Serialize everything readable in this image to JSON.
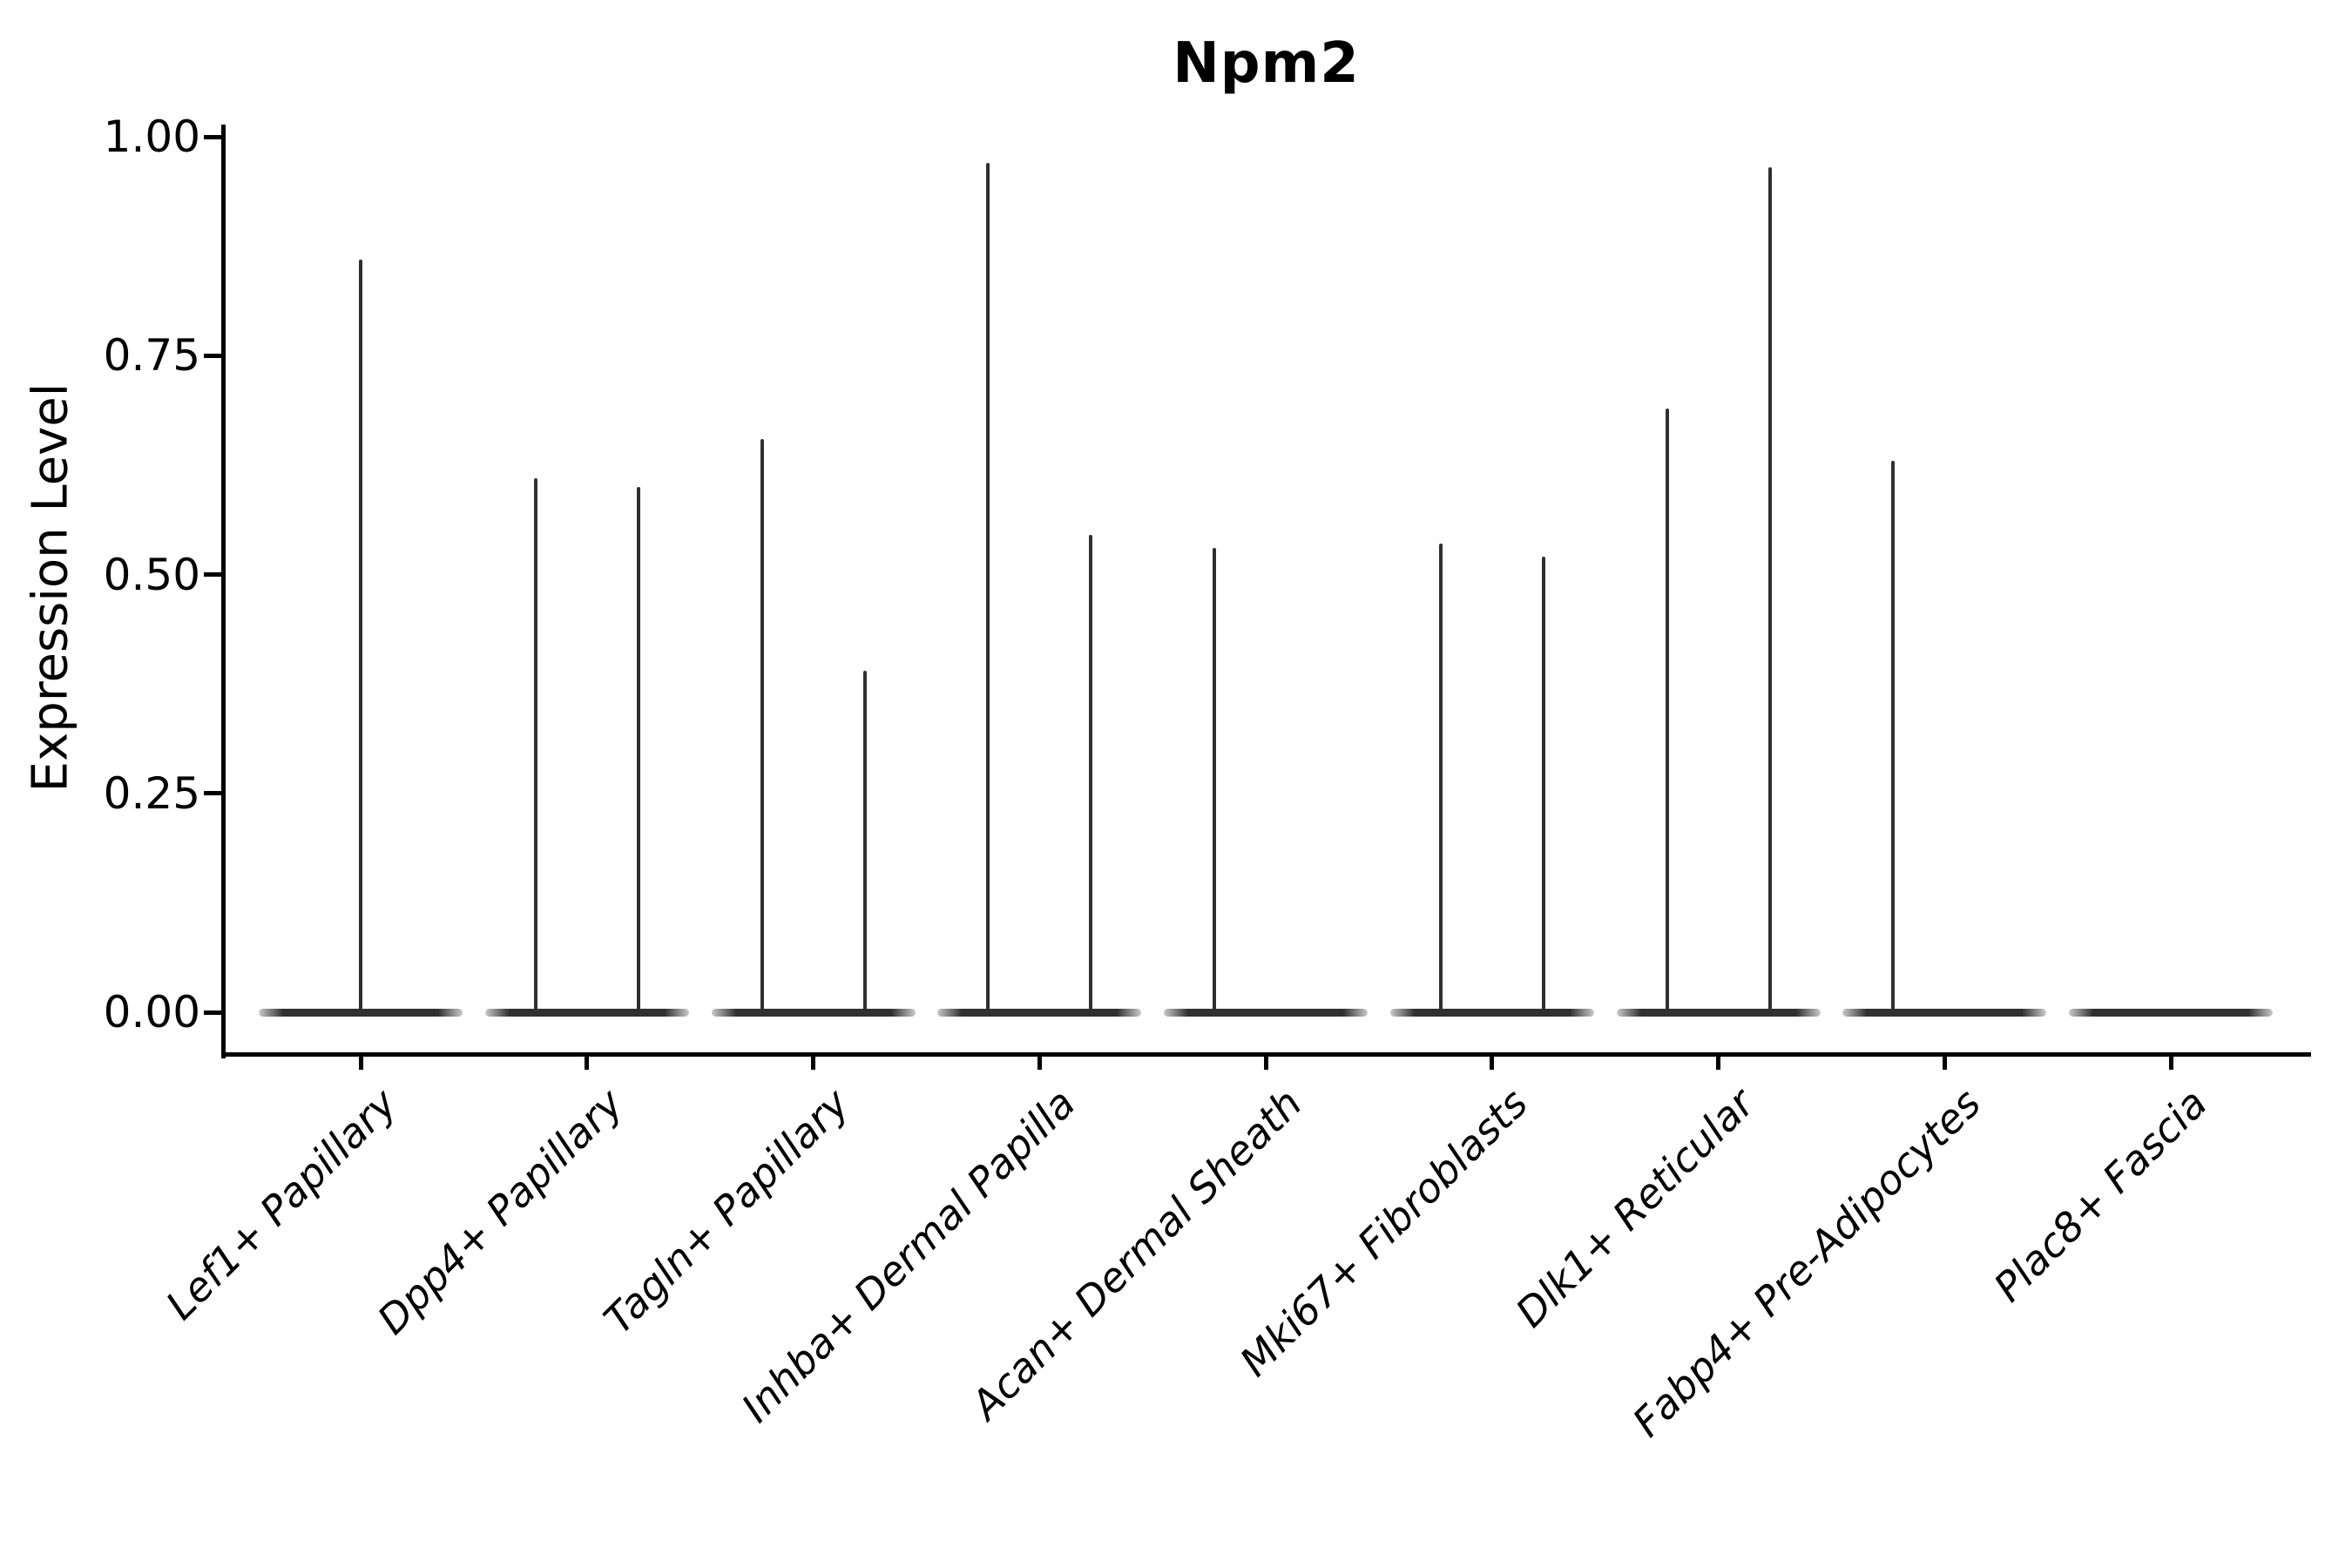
{
  "title": "Npm2",
  "chart_data": {
    "type": "violin",
    "title": "Npm2",
    "xlabel": "",
    "ylabel": "Expression Level",
    "ylim": [
      0,
      1.0
    ],
    "yticks": [
      1.0,
      0.75,
      0.5,
      0.25,
      0.0
    ],
    "ytick_labels": [
      "1.00",
      "0.75",
      "0.50",
      "0.25",
      "0.00"
    ],
    "grid": false,
    "legend": false,
    "x_label_angle_deg": 45,
    "x_label_style": "italic",
    "categories": [
      "Lef1+ Papillary",
      "Dpp4+ Papillary",
      "Tagln+ Papillary",
      "Inhba+ Dermal Papilla",
      "Acan+ Dermal Sheath",
      "Mki67+ Fibroblasts",
      "Dlk1+ Reticular",
      "Fabp4+ Pre-Adipocytes",
      "Plac8+ Fascia"
    ],
    "description": "Each category shows a violin collapsed to a flat bar at expression 0 with thin vertical density tails; tail entries give the maximum expression level reached.",
    "violins": [
      {
        "category": "Lef1+ Papillary",
        "baseline": 0.0,
        "spikes": [
          {
            "pos": "center",
            "max": 0.86
          }
        ]
      },
      {
        "category": "Dpp4+ Papillary",
        "baseline": 0.0,
        "spikes": [
          {
            "pos": "left",
            "max": 0.61
          },
          {
            "pos": "right",
            "max": 0.6
          }
        ]
      },
      {
        "category": "Tagln+ Papillary",
        "baseline": 0.0,
        "spikes": [
          {
            "pos": "left",
            "max": 0.655
          },
          {
            "pos": "right",
            "max": 0.39
          }
        ]
      },
      {
        "category": "Inhba+ Dermal Papilla",
        "baseline": 0.0,
        "spikes": [
          {
            "pos": "left",
            "max": 0.97
          },
          {
            "pos": "right",
            "max": 0.545
          }
        ]
      },
      {
        "category": "Acan+ Dermal Sheath",
        "baseline": 0.0,
        "spikes": [
          {
            "pos": "left",
            "max": 0.53
          }
        ]
      },
      {
        "category": "Mki67+ Fibroblasts",
        "baseline": 0.0,
        "spikes": [
          {
            "pos": "left",
            "max": 0.535
          },
          {
            "pos": "right",
            "max": 0.52
          }
        ]
      },
      {
        "category": "Dlk1+ Reticular",
        "baseline": 0.0,
        "spikes": [
          {
            "pos": "left",
            "max": 0.69
          },
          {
            "pos": "right",
            "max": 0.965
          }
        ]
      },
      {
        "category": "Fabp4+ Pre-Adipocytes",
        "baseline": 0.0,
        "spikes": [
          {
            "pos": "left",
            "max": 0.63
          }
        ]
      },
      {
        "category": "Plac8+ Fascia",
        "baseline": 0.0,
        "spikes": []
      }
    ],
    "colors": {
      "violin": "#2f2f2f",
      "axis": "#000000",
      "text": "#000000",
      "background": "#ffffff"
    }
  }
}
